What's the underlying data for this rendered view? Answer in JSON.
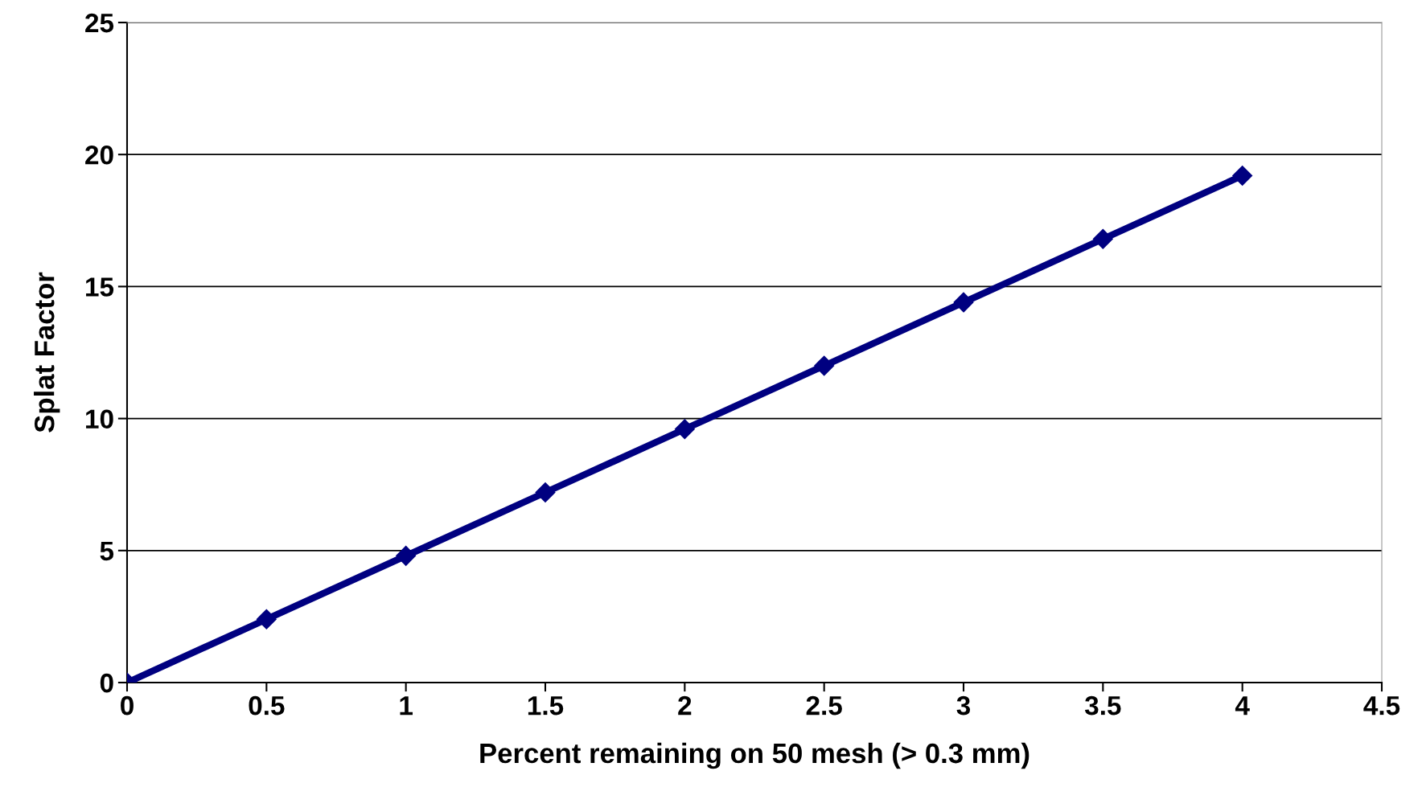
{
  "chart_data": {
    "type": "line",
    "xlabel": "Percent remaining on 50 mesh (> 0.3 mm)",
    "ylabel": "Splat Factor",
    "x": [
      0,
      0.5,
      1,
      1.5,
      2,
      2.5,
      3,
      3.5,
      4
    ],
    "series": [
      {
        "color": "#000080",
        "values": [
          0,
          2.4,
          4.8,
          7.2,
          9.6,
          12.0,
          14.4,
          16.8,
          19.2
        ]
      }
    ],
    "xlim": [
      0,
      4.5
    ],
    "xticks": [
      0,
      0.5,
      1,
      1.5,
      2,
      2.5,
      3,
      3.5,
      4,
      4.5
    ],
    "ylim": [
      0,
      25
    ],
    "yticks": [
      0,
      5,
      10,
      15,
      20,
      25
    ],
    "grid": "y",
    "marker": "diamond",
    "line_style": "solid"
  }
}
